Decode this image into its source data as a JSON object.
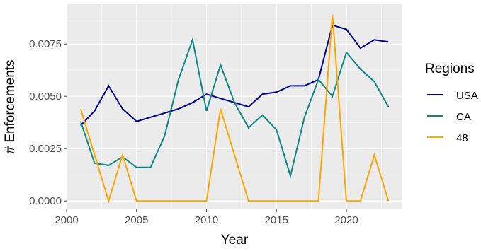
{
  "chart_data": {
    "type": "line",
    "xlabel": "Year",
    "ylabel": "# Enforcements",
    "xlim": [
      2000,
      2024
    ],
    "ylim": [
      -0.0004,
      0.0094
    ],
    "x_ticks": [
      2000,
      2005,
      2010,
      2015,
      2020
    ],
    "x_tick_labels": [
      "2000",
      "2005",
      "2010",
      "2015",
      "2020"
    ],
    "y_ticks": [
      0.0,
      0.0025,
      0.005,
      0.0075
    ],
    "y_tick_labels": [
      "0.0000",
      "0.0025",
      "0.0050",
      "0.0075"
    ],
    "grid": true,
    "legend": {
      "title": "Regions",
      "position": "right"
    },
    "x": [
      2001,
      2002,
      2003,
      2004,
      2005,
      2006,
      2007,
      2008,
      2009,
      2010,
      2011,
      2012,
      2013,
      2014,
      2015,
      2016,
      2017,
      2018,
      2019,
      2020,
      2021,
      2022,
      2023
    ],
    "series": [
      {
        "name": "USA",
        "color": "#00008B",
        "values": [
          0.0036,
          0.0043,
          0.0055,
          0.0044,
          0.0038,
          0.004,
          0.0042,
          0.0044,
          0.0047,
          0.0051,
          0.0049,
          0.0047,
          0.0045,
          0.0051,
          0.0052,
          0.0055,
          0.0055,
          0.0058,
          0.0084,
          0.0082,
          0.0073,
          0.0077,
          0.0076
        ]
      },
      {
        "name": "CA",
        "color": "#0E8585",
        "values": [
          0.0038,
          0.0018,
          0.0017,
          0.0021,
          0.0016,
          0.0016,
          0.0031,
          0.0058,
          0.0077,
          0.0043,
          0.0065,
          0.0047,
          0.0035,
          0.0041,
          0.0034,
          0.0012,
          0.004,
          0.0058,
          0.005,
          0.0071,
          0.0063,
          0.0057,
          0.0045
        ]
      },
      {
        "name": "48",
        "color": "#FFA500",
        "values": [
          0.0044,
          0.0022,
          0.0,
          0.0022,
          0.0,
          0.0,
          0.0,
          0.0,
          0.0,
          0.0,
          0.0044,
          0.0022,
          0.0,
          0.0,
          0.0,
          0.0,
          0.0,
          0.0,
          0.0089,
          0.0,
          0.0,
          0.0022,
          0.0
        ]
      }
    ]
  }
}
